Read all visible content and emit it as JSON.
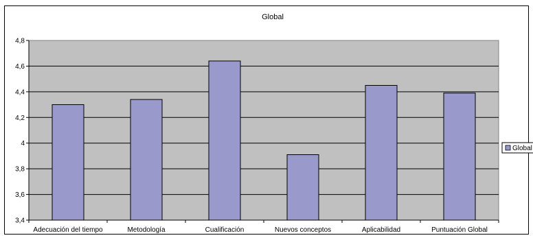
{
  "chart_data": {
    "type": "bar",
    "title": "Global",
    "categories": [
      "Adecuación del tiempo",
      "Metodología",
      "Cualificación",
      "Nuevos conceptos",
      "Aplicabilidad",
      "Puntuación Global"
    ],
    "series": [
      {
        "name": "Global",
        "values": [
          4.3,
          4.34,
          4.64,
          3.91,
          4.45,
          4.39
        ]
      }
    ],
    "ylim": [
      3.4,
      4.8
    ],
    "yticks": [
      "3,4",
      "3,6",
      "3,8",
      "4",
      "4,2",
      "4,4",
      "4,6",
      "4,8"
    ],
    "ytick_values": [
      3.4,
      3.6,
      3.8,
      4.0,
      4.2,
      4.4,
      4.6,
      4.8
    ],
    "legend_position": "right",
    "grid": true,
    "colors": {
      "bar": "#9999cc",
      "plot_bg": "#c0c0c0",
      "bar_stroke": "#000000"
    }
  }
}
